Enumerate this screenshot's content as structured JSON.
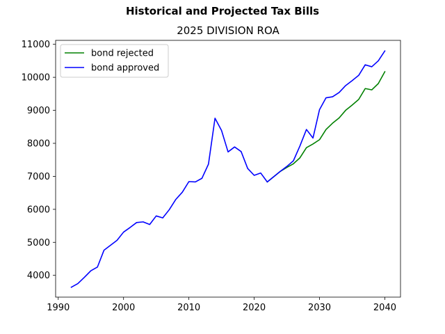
{
  "figure": {
    "suptitle": "Historical and Projected Tax Bills"
  },
  "chart_data": {
    "type": "line",
    "title": "2025 DIVISION ROA",
    "xlabel": "",
    "ylabel": "",
    "xlim": [
      1989.6,
      2042.4
    ],
    "ylim": [
      3340,
      11120
    ],
    "xticks": [
      1990,
      2000,
      2010,
      2020,
      2030,
      2040
    ],
    "yticks": [
      4000,
      5000,
      6000,
      7000,
      8000,
      9000,
      10000,
      11000
    ],
    "grid": false,
    "legend_position": "top-left",
    "series": [
      {
        "name": "bond rejected",
        "color": "#008000",
        "x": [
          2022,
          2023,
          2024,
          2025,
          2026,
          2027,
          2028,
          2029,
          2030,
          2031,
          2032,
          2033,
          2034,
          2035,
          2036,
          2037,
          2038,
          2039,
          2040
        ],
        "y": [
          6830,
          6990,
          7150,
          7270,
          7380,
          7560,
          7870,
          7980,
          8110,
          8420,
          8610,
          8770,
          9000,
          9160,
          9330,
          9660,
          9620,
          9810,
          10170
        ]
      },
      {
        "name": "bond approved",
        "color": "#0000ff",
        "x": [
          1992,
          1993,
          1994,
          1995,
          1996,
          1997,
          1998,
          1999,
          2000,
          2001,
          2002,
          2003,
          2004,
          2005,
          2006,
          2007,
          2008,
          2009,
          2010,
          2011,
          2012,
          2013,
          2014,
          2015,
          2016,
          2017,
          2018,
          2019,
          2020,
          2021,
          2022,
          2023,
          2024,
          2025,
          2026,
          2027,
          2028,
          2029,
          2030,
          2031,
          2032,
          2033,
          2034,
          2035,
          2036,
          2037,
          2038,
          2039,
          2040
        ],
        "y": [
          3640,
          3750,
          3940,
          4140,
          4250,
          4760,
          4910,
          5060,
          5310,
          5450,
          5600,
          5620,
          5540,
          5800,
          5740,
          5990,
          6300,
          6520,
          6840,
          6830,
          6940,
          7370,
          8760,
          8390,
          7740,
          7890,
          7750,
          7240,
          7030,
          7100,
          6830,
          6990,
          7150,
          7300,
          7470,
          7920,
          8420,
          8160,
          9020,
          9380,
          9410,
          9540,
          9750,
          9900,
          10060,
          10380,
          10320,
          10500,
          10800
        ]
      }
    ]
  }
}
